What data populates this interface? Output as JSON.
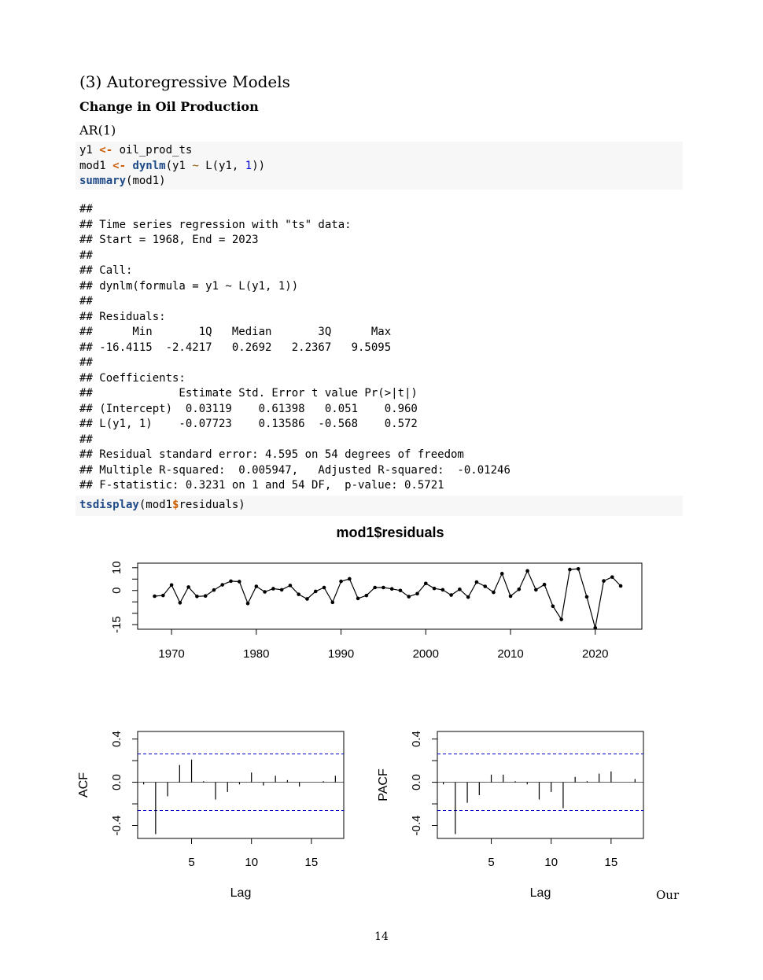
{
  "section": {
    "heading": "(3) Autoregressive Models"
  },
  "subsection": {
    "heading": "Change in Oil Production"
  },
  "model_label": "AR(1)",
  "code1": {
    "line1": {
      "var": "y1",
      "op": "<-",
      "rest": " oil_prod_ts"
    },
    "line2": {
      "var": "mod1",
      "op": "<-",
      "fn": "dynlm",
      "p1": "(y1 ",
      "tilde": "~",
      "p2": " L(y1, ",
      "num": "1",
      "p3": "))"
    },
    "line3": {
      "fn": "summary",
      "rest": "(mod1)"
    }
  },
  "output_lines": [
    "##",
    "## Time series regression with \"ts\" data:",
    "## Start = 1968, End = 2023",
    "##",
    "## Call:",
    "## dynlm(formula = y1 ~ L(y1, 1))",
    "##",
    "## Residuals:",
    "##      Min       1Q   Median       3Q      Max",
    "## -16.4115  -2.4217   0.2692   2.2367   9.5095",
    "##",
    "## Coefficients:",
    "##             Estimate Std. Error t value Pr(>|t|)",
    "## (Intercept)  0.03119    0.61398   0.051    0.960",
    "## L(y1, 1)    -0.07723    0.13586  -0.568    0.572",
    "##",
    "## Residual standard error: 4.595 on 54 degrees of freedom",
    "## Multiple R-squared:  0.005947,   Adjusted R-squared:  -0.01246",
    "## F-statistic: 0.3231 on 1 and 54 DF,  p-value: 0.5721"
  ],
  "code2": {
    "fn": "tsdisplay",
    "p1": "(mod1",
    "op": "$",
    "p2": "residuals)"
  },
  "chart_data": [
    {
      "type": "line",
      "title": "mod1$residuals",
      "xlabel": "",
      "ylabel": "",
      "xlim": [
        1966,
        2025.5
      ],
      "ylim": [
        -17,
        12
      ],
      "xticks": [
        "1970",
        "1980",
        "1990",
        "2000",
        "2010",
        "2020"
      ],
      "yticks": [
        "-15",
        "0",
        "10"
      ],
      "grid": false,
      "x": [
        1968,
        1969,
        1970,
        1971,
        1972,
        1973,
        1974,
        1975,
        1976,
        1977,
        1978,
        1979,
        1980,
        1981,
        1982,
        1983,
        1984,
        1985,
        1986,
        1987,
        1988,
        1989,
        1990,
        1991,
        1992,
        1993,
        1994,
        1995,
        1996,
        1997,
        1998,
        1999,
        2000,
        2001,
        2002,
        2003,
        2004,
        2005,
        2006,
        2007,
        2008,
        2009,
        2010,
        2011,
        2012,
        2013,
        2014,
        2015,
        2016,
        2017,
        2018,
        2019,
        2020,
        2021,
        2022,
        2023
      ],
      "y": [
        -2.5,
        -2.2,
        2.4,
        -5.4,
        1.5,
        -2.6,
        -2.4,
        0.2,
        2.5,
        4.1,
        3.9,
        -5.7,
        1.8,
        -0.6,
        0.8,
        0.3,
        2.2,
        -1.7,
        -3.7,
        -0.4,
        1.3,
        -5.2,
        4.0,
        5.1,
        -3.5,
        -2.2,
        1.3,
        1.3,
        0.7,
        0.0,
        -2.7,
        -1.4,
        3.1,
        0.9,
        0.3,
        -2.0,
        0.5,
        -2.9,
        3.7,
        1.8,
        -0.8,
        7.4,
        -2.5,
        0.5,
        8.6,
        0.3,
        2.6,
        -6.9,
        -12.7,
        9.2,
        9.5,
        -2.8,
        -16.4,
        4.2,
        5.9,
        2.0
      ]
    },
    {
      "type": "bar",
      "ylabel": "ACF",
      "xlabel": "Lag",
      "xlim": [
        0.5,
        17.7
      ],
      "ylim": [
        -0.52,
        0.47
      ],
      "xticks": [
        "5",
        "10",
        "15"
      ],
      "yticks": [
        "-0.4",
        "0.0",
        "0.4"
      ],
      "conf_limit": 0.262,
      "lags": [
        1,
        2,
        3,
        4,
        5,
        6,
        7,
        8,
        9,
        10,
        11,
        12,
        13,
        14,
        15,
        16,
        17
      ],
      "values": [
        -0.02,
        -0.48,
        -0.13,
        0.16,
        0.21,
        0.01,
        -0.16,
        -0.09,
        -0.02,
        0.09,
        -0.03,
        0.06,
        0.02,
        -0.04,
        0.0,
        0.01,
        0.06
      ]
    },
    {
      "type": "bar",
      "ylabel": "PACF",
      "xlabel": "Lag",
      "xlim": [
        0.5,
        17.7
      ],
      "ylim": [
        -0.52,
        0.47
      ],
      "xticks": [
        "5",
        "10",
        "15"
      ],
      "yticks": [
        "-0.4",
        "0.0",
        "0.4"
      ],
      "conf_limit": 0.262,
      "lags": [
        1,
        2,
        3,
        4,
        5,
        6,
        7,
        8,
        9,
        10,
        11,
        12,
        13,
        14,
        15,
        16,
        17
      ],
      "values": [
        -0.02,
        -0.48,
        -0.19,
        -0.12,
        0.07,
        0.07,
        0.01,
        -0.02,
        -0.16,
        -0.09,
        -0.24,
        0.05,
        0.01,
        0.08,
        0.1,
        0.0,
        0.03
      ]
    }
  ],
  "margin_text": "Our",
  "page_number": "14"
}
